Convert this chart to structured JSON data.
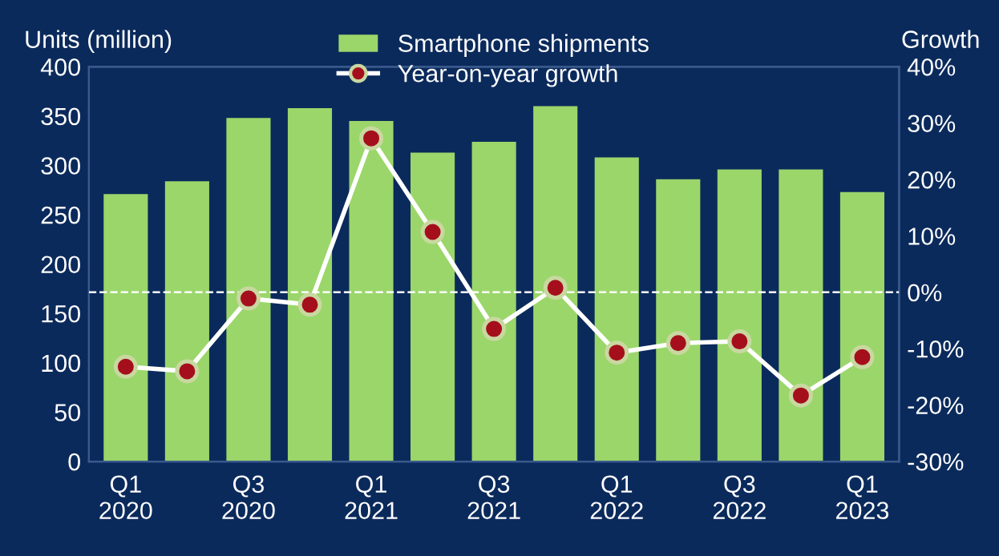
{
  "chart_data": {
    "type": "bar",
    "categories": [
      "Q1\n2020",
      null,
      "Q3\n2020",
      null,
      "Q1\n2021",
      null,
      "Q3\n2021",
      null,
      "Q1\n2022",
      null,
      "Q3\n2022",
      null,
      "Q1\n2023"
    ],
    "series": [
      {
        "name": "Smartphone shipments",
        "color": "#9bd66a",
        "values": [
          271,
          284,
          348,
          358,
          345,
          313,
          324,
          360,
          308,
          286,
          296,
          296,
          273
        ]
      },
      {
        "name": "Year-on-year growth",
        "type": "line",
        "axis": "y2",
        "color": "#ffffff",
        "marker": "circle",
        "values": [
          -13.2,
          -14,
          -1.1,
          -2.2,
          27.3,
          10.7,
          -6.5,
          0.8,
          -10.7,
          -9,
          -8.7,
          -18.3,
          -11.5
        ]
      }
    ],
    "ylabel": "Units (million)",
    "y2label": "Growth",
    "ylim": [
      0,
      400
    ],
    "yticks": [
      0,
      50,
      100,
      150,
      200,
      250,
      300,
      350,
      400
    ],
    "y2lim": [
      -30,
      40
    ],
    "y2ticks": [
      {
        "value": -30,
        "label": "-30%"
      },
      {
        "value": -20,
        "label": "-20%"
      },
      {
        "value": -10,
        "label": "-10%"
      },
      {
        "value": 0,
        "label": "0%"
      },
      {
        "value": 10,
        "label": "10%"
      },
      {
        "value": 20,
        "label": "20%"
      },
      {
        "value": 30,
        "label": "30%"
      },
      {
        "value": 40,
        "label": "40%"
      }
    ],
    "ref_lines": [
      {
        "axis": "y2",
        "value": 0,
        "label": null,
        "color": "#ffffff",
        "line_style": "dashed"
      }
    ],
    "grid": false,
    "legend": "top"
  }
}
